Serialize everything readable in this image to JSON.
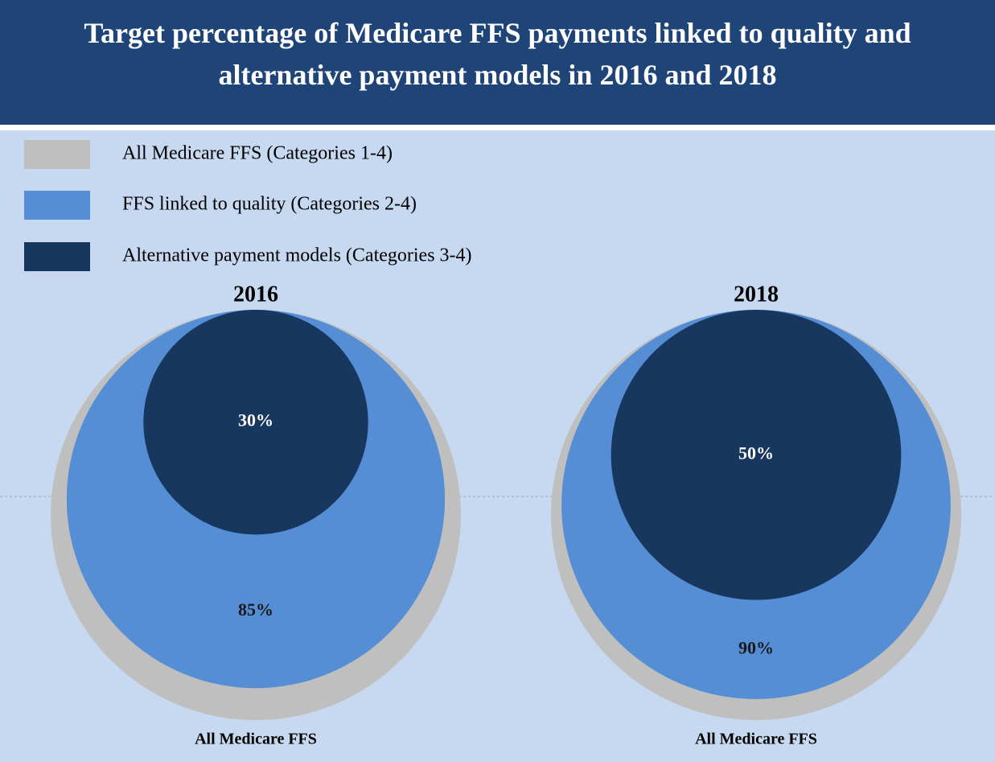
{
  "title": "Target percentage of Medicare FFS payments linked to quality and alternative payment models in 2016 and 2018",
  "chart_data": [
    {
      "type": "nested-circle",
      "title": "2016",
      "xlabel": "All Medicare FFS",
      "categories": [
        "All Medicare FFS (Categories 1-4)",
        "FFS linked to quality (Categories 2-4)",
        "Alternative payment models (Categories 3-4)"
      ],
      "values": [
        100,
        85,
        30
      ],
      "value_labels": [
        null,
        "85%",
        "30%"
      ],
      "colors": [
        "#bfbfbf",
        "#558ed5",
        "#17375e"
      ]
    },
    {
      "type": "nested-circle",
      "title": "2018",
      "xlabel": "All Medicare FFS",
      "categories": [
        "All Medicare FFS (Categories 1-4)",
        "FFS linked to quality (Categories 2-4)",
        "Alternative payment models (Categories 3-4)"
      ],
      "values": [
        100,
        90,
        50
      ],
      "value_labels": [
        null,
        "90%",
        "50%"
      ],
      "colors": [
        "#bfbfbf",
        "#558ed5",
        "#17375e"
      ]
    }
  ]
}
